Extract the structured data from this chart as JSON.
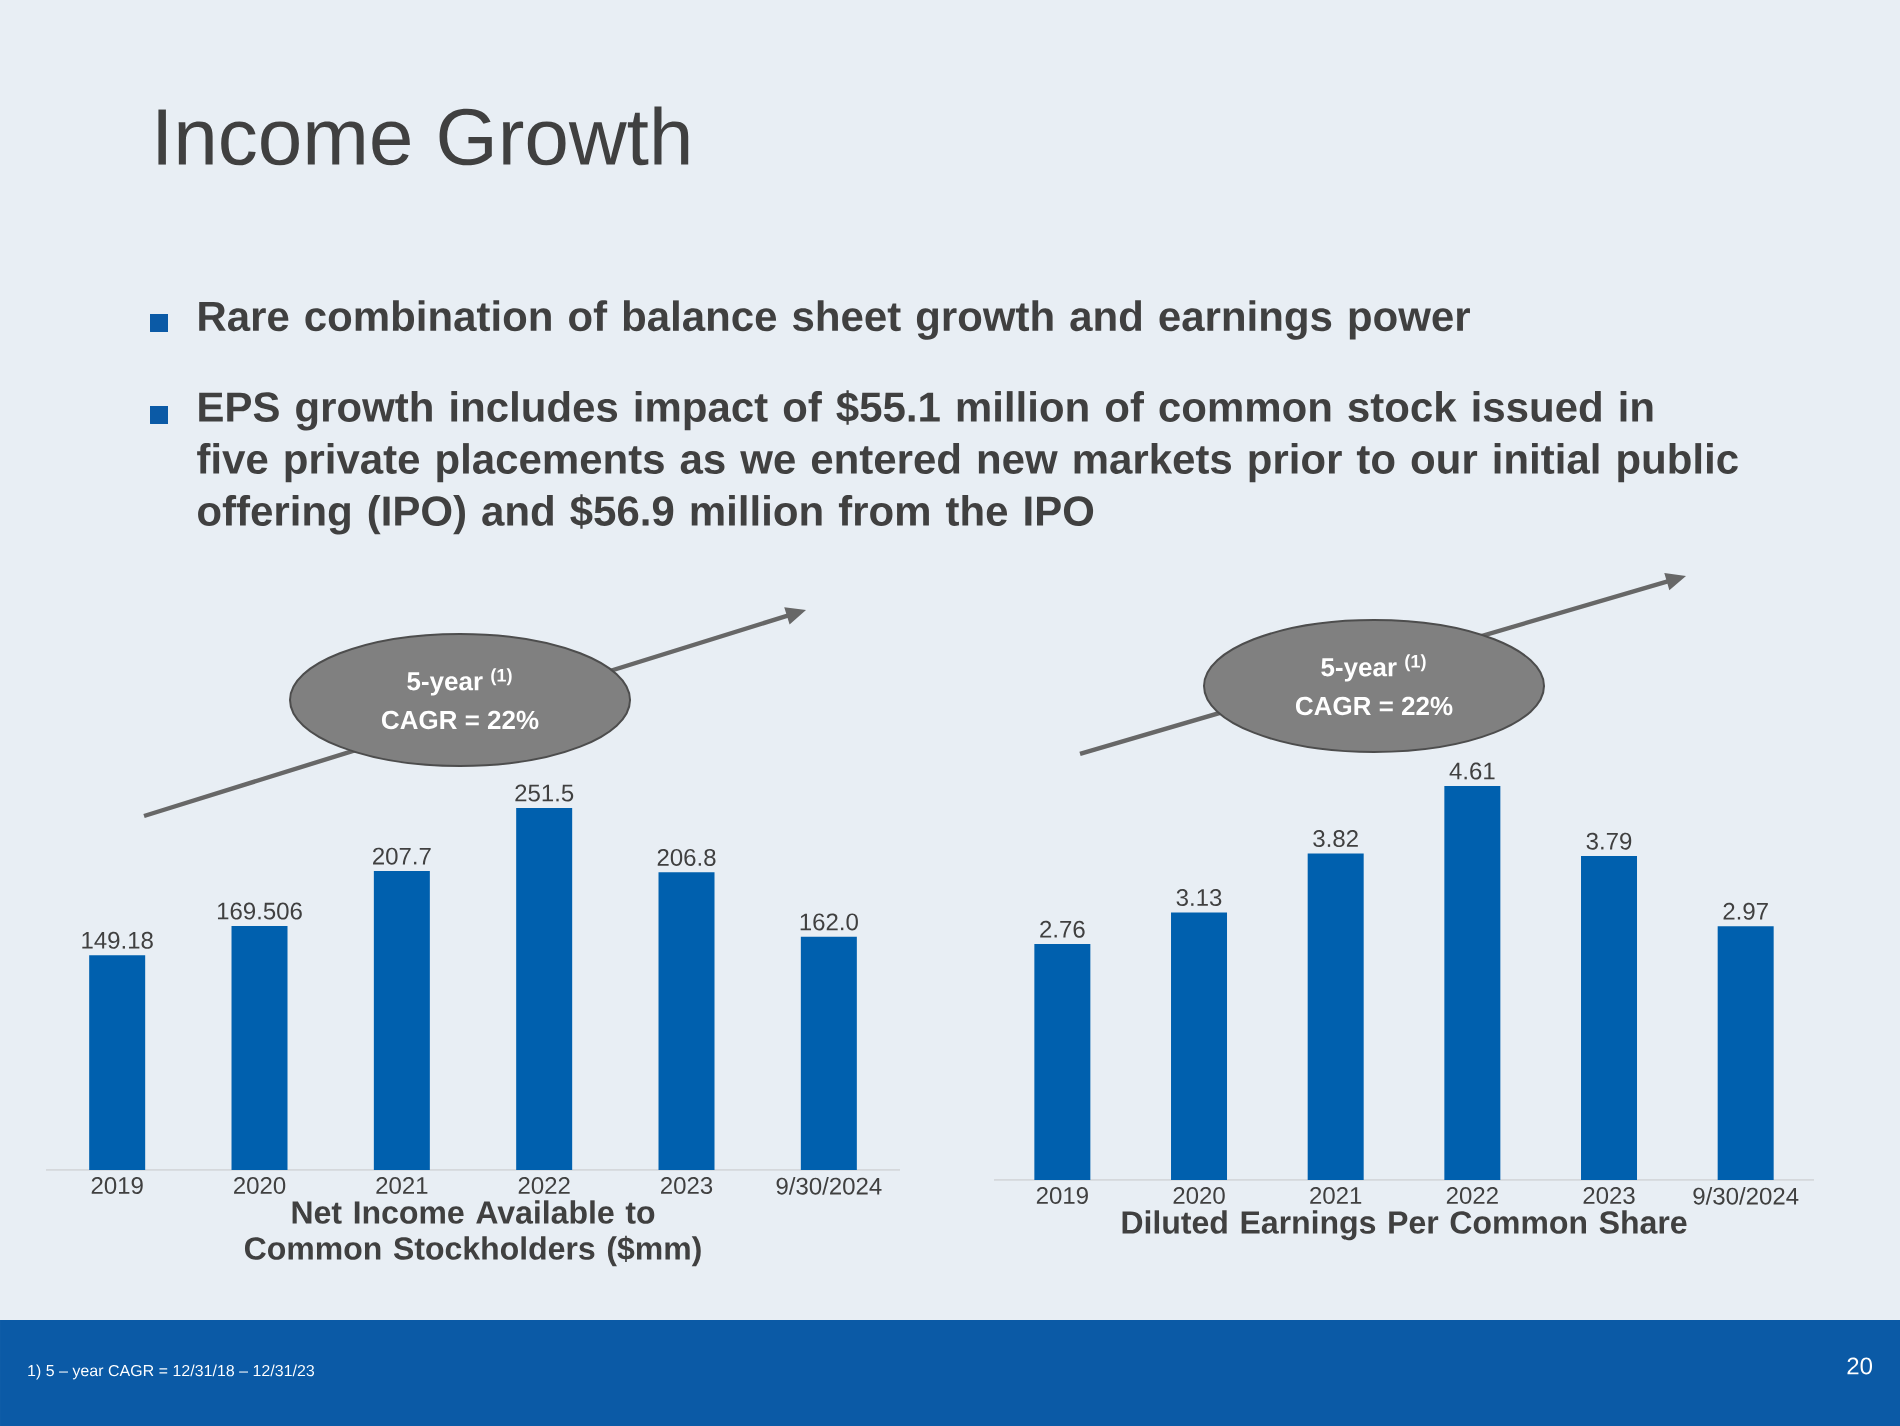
{
  "chart_data": [
    {
      "type": "bar",
      "title": "Income Growth",
      "categories": [
        "2019",
        "2020",
        "2021",
        "2022",
        "2023",
        "9/30/2024"
      ],
      "values": [
        149.18,
        169.506,
        207.7,
        251.5,
        206.8,
        162.0
      ],
      "value_labels": [
        "149.18",
        "169.506",
        "207.7",
        "251.5",
        "206.8",
        "162.0"
      ],
      "color": "#0060ae",
      "xlabel": "Net Income Available to Common Stockholders ($mm)",
      "annotations": [
        "Rare combination of balance sheet growth and earnings power",
        "EPS growth includes impact of $55.1 million of common stock issued in five private placements as we entered new markets prior to our initial public offering (IPO) and $56.9 million from the IPO",
        "5-year $^{(1)}$",
        "CAGR = 22%",
        "1)     5 – year CAGR = 12/31/18 – 12/31/23",
        "20"
      ]
    },
    {
      "type": "bar",
      "categories": [
        "2019",
        "2020",
        "2021",
        "2022",
        "2023",
        "9/30/2024"
      ],
      "values": [
        2.76,
        3.13,
        3.82,
        4.61,
        3.79,
        2.97
      ],
      "value_labels": [
        "2.76",
        "3.13",
        "3.82",
        "4.61",
        "3.79",
        "2.97"
      ],
      "color": "#0060ae",
      "xlabel": "Diluted Earnings Per Common Share",
      "annotations": [
        "5-year $^{(1)}$",
        "CAGR = 22%"
      ]
    }
  ]
}
